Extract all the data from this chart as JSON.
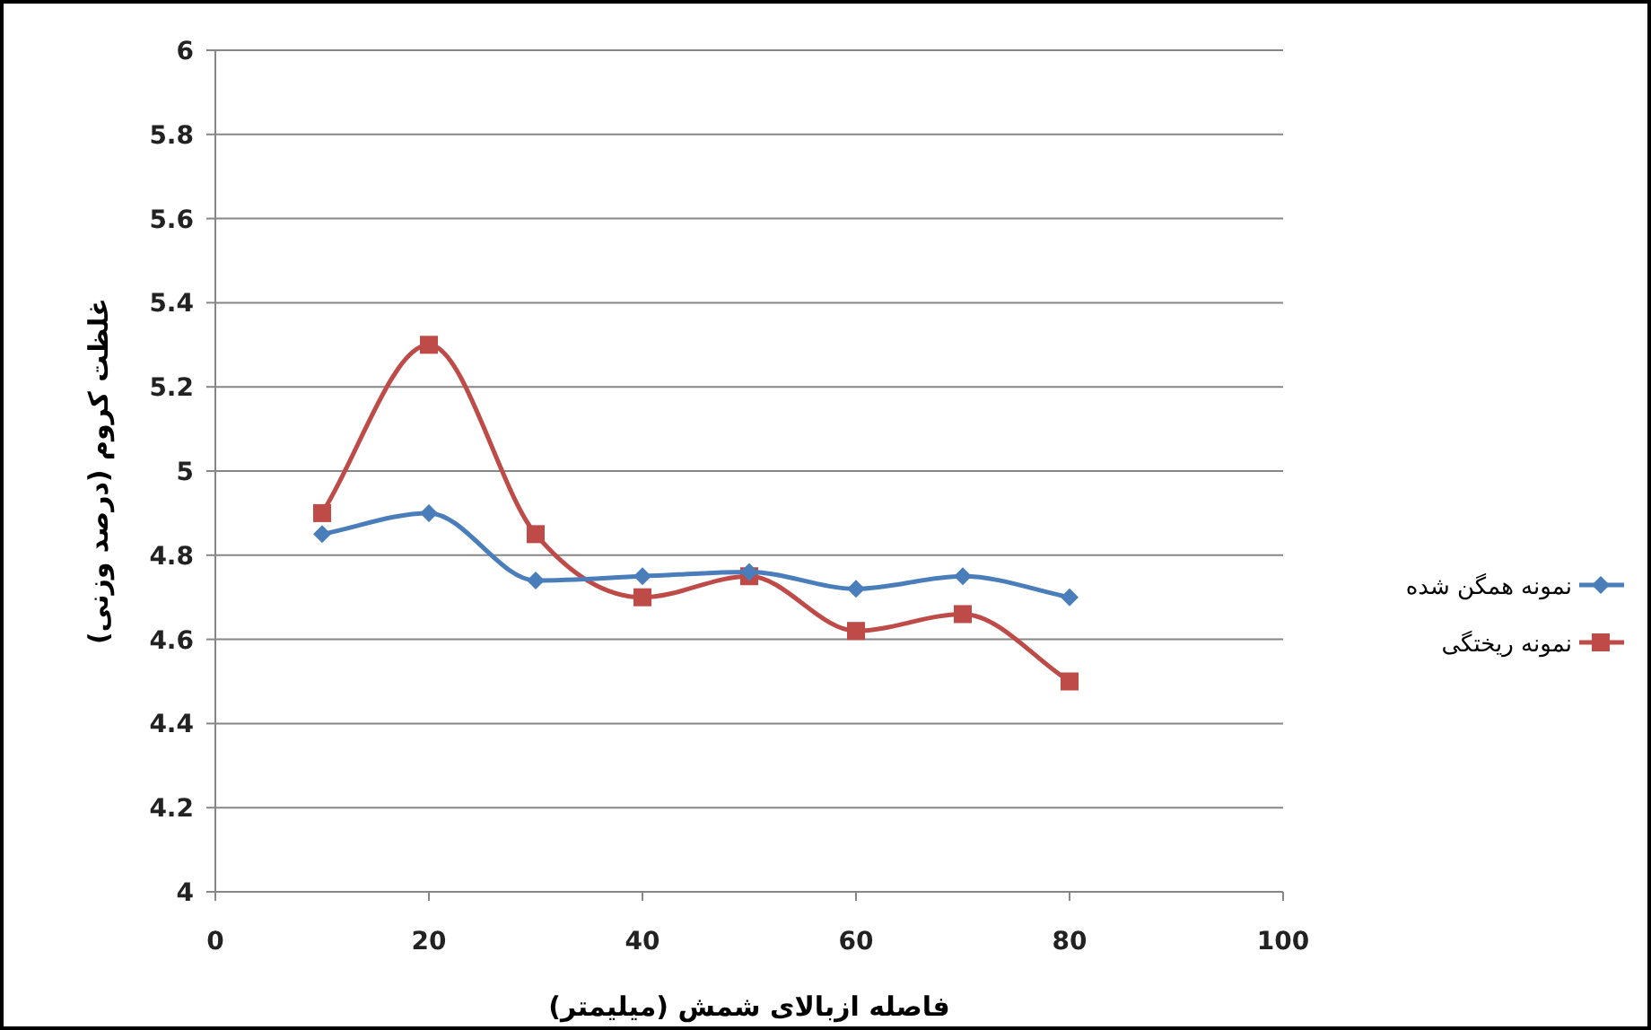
{
  "chart_data": {
    "type": "line",
    "xlabel": "فاصله ازبالای شمش (میلیمتر)",
    "ylabel": "غلظت کروم (درصد وزنی)",
    "x": [
      10,
      20,
      30,
      40,
      50,
      60,
      70,
      80
    ],
    "series": [
      {
        "name": "نمونه همگن شده",
        "color": "#4a7ebb",
        "marker": "diamond",
        "values": [
          4.85,
          4.9,
          4.74,
          4.75,
          4.76,
          4.72,
          4.75,
          4.7
        ]
      },
      {
        "name": "نمونه ریختگی",
        "color": "#be4b48",
        "marker": "square",
        "values": [
          4.9,
          5.3,
          4.85,
          4.7,
          4.75,
          4.62,
          4.66,
          4.5
        ]
      }
    ],
    "xlim": [
      0,
      100
    ],
    "xticks": [
      0,
      20,
      40,
      60,
      80,
      100
    ],
    "ylim": [
      4,
      6
    ],
    "yticks": [
      4,
      4.2,
      4.4,
      4.6,
      4.8,
      5,
      5.2,
      5.4,
      5.6,
      5.8,
      6
    ],
    "grid": "y",
    "legend": "right"
  }
}
